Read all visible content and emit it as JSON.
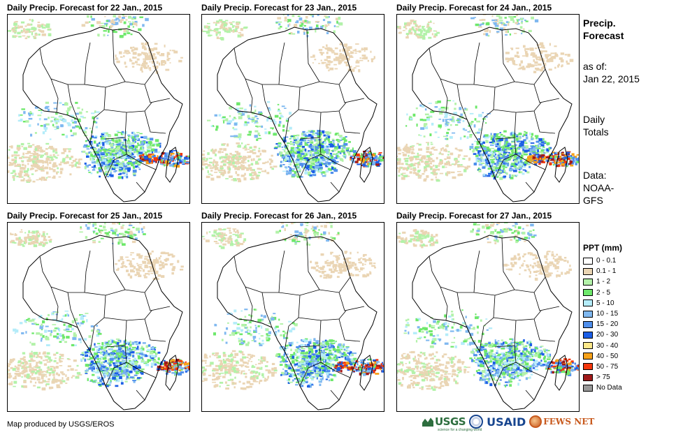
{
  "panels": [
    {
      "title": "Daily Precip. Forecast for 22 Jan., 2015"
    },
    {
      "title": "Daily Precip. Forecast for 23 Jan., 2015"
    },
    {
      "title": "Daily Precip. Forecast for 24 Jan., 2015"
    },
    {
      "title": "Daily Precip. Forecast for 25 Jan., 2015"
    },
    {
      "title": "Daily Precip. Forecast for 26 Jan., 2015"
    },
    {
      "title": "Daily Precip. Forecast for 27 Jan., 2015"
    }
  ],
  "sidebar": {
    "title_line1": "Precip.",
    "title_line2": "Forecast",
    "asof_line1": "as of:",
    "asof_line2": "Jan 22, 2015",
    "totals_line1": "Daily",
    "totals_line2": "Totals",
    "data_line1": "Data:",
    "data_line2": "NOAA-",
    "data_line3": "GFS"
  },
  "legend": {
    "title": "PPT (mm)",
    "items": [
      {
        "label": "0 - 0.1",
        "color": "#ffffff"
      },
      {
        "label": "0.1 - 1",
        "color": "#ead5b4"
      },
      {
        "label": "1 - 2",
        "color": "#b3f2a9"
      },
      {
        "label": "2 - 5",
        "color": "#6ee86b"
      },
      {
        "label": "5 - 10",
        "color": "#b4ecf9"
      },
      {
        "label": "10 - 15",
        "color": "#7fb8f0"
      },
      {
        "label": "15 - 20",
        "color": "#4f8fec"
      },
      {
        "label": "20 - 30",
        "color": "#1b5ee6"
      },
      {
        "label": "30 - 40",
        "color": "#fde88a"
      },
      {
        "label": "40 - 50",
        "color": "#f7a21a"
      },
      {
        "label": "50 - 75",
        "color": "#f4370c"
      },
      {
        "label": "> 75",
        "color": "#a01a1a"
      },
      {
        "label": "No Data",
        "color": "#999999"
      }
    ]
  },
  "footer": {
    "credit": "Map produced by USGS/EROS",
    "logo_usgs": "USGS",
    "logo_usgs_tagline": "science for a changing world",
    "logo_usaid": "USAID",
    "logo_fews": "FEWS NET"
  }
}
